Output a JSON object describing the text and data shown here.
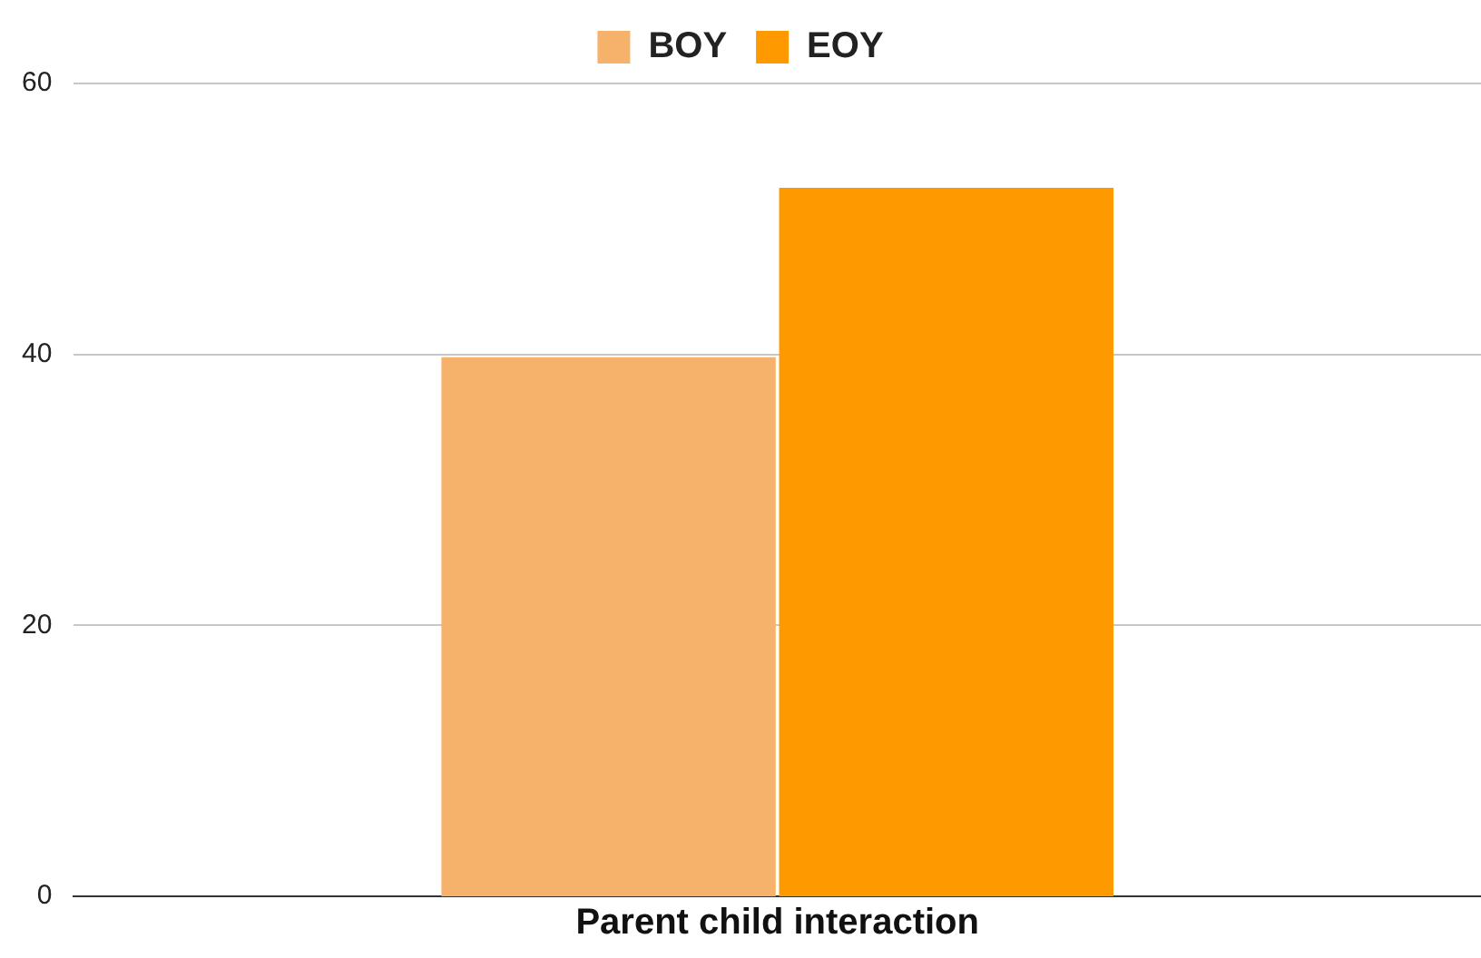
{
  "chart_data": {
    "type": "bar",
    "categories": [
      "Parent child interaction"
    ],
    "series": [
      {
        "name": "BOY",
        "color": "#f6b26b",
        "values": [
          39.8
        ]
      },
      {
        "name": "EOY",
        "color": "#ff9900",
        "values": [
          52.3
        ]
      }
    ],
    "ylim": [
      0,
      60
    ],
    "yticks": [
      0,
      20,
      40,
      60
    ],
    "grid": "y",
    "legend": "top"
  }
}
